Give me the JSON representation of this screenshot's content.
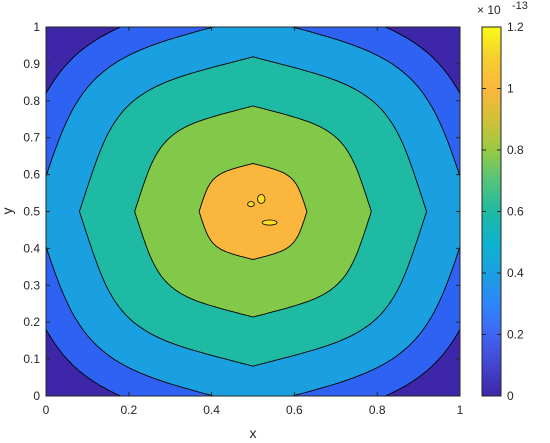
{
  "chart_data": {
    "type": "contour",
    "xlabel": "x",
    "ylabel": "y",
    "xlim": [
      0,
      1
    ],
    "ylim": [
      0,
      1
    ],
    "xticks": [
      "0",
      "0.2",
      "0.4",
      "0.6",
      "0.8",
      "1"
    ],
    "yticks": [
      "0",
      "0.1",
      "0.2",
      "0.3",
      "0.4",
      "0.5",
      "0.6",
      "0.7",
      "0.8",
      "0.9",
      "1"
    ],
    "colorbar": {
      "ticks": [
        "0",
        "0.2",
        "0.4",
        "0.6",
        "0.8",
        "1",
        "1.2"
      ],
      "multiplier": "× 10",
      "exponent": "-13",
      "range": [
        0,
        1.2
      ]
    },
    "levels": [
      {
        "level": 0.0,
        "color": "#3e26a8"
      },
      {
        "level": 0.2,
        "color": "#2e62f3"
      },
      {
        "level": 0.4,
        "color": "#1aa0e0"
      },
      {
        "level": 0.6,
        "color": "#1fbaa3"
      },
      {
        "level": 0.8,
        "color": "#82c94a"
      },
      {
        "level": 1.0,
        "color": "#fbb73d"
      },
      {
        "level": 1.2,
        "color": "#f9e021"
      }
    ],
    "field": "max value ~1.15e-13 near (0.5, 0.5), decreasing to 0 at the square boundary",
    "colormap_stops": [
      "#3e26a8",
      "#4246ce",
      "#4165f4",
      "#2e86f9",
      "#1aa0e0",
      "#0db3cc",
      "#1fbaa3",
      "#53c47a",
      "#97ca45",
      "#d3c037",
      "#fbb73d",
      "#f6cf2f",
      "#f9fb15"
    ]
  }
}
